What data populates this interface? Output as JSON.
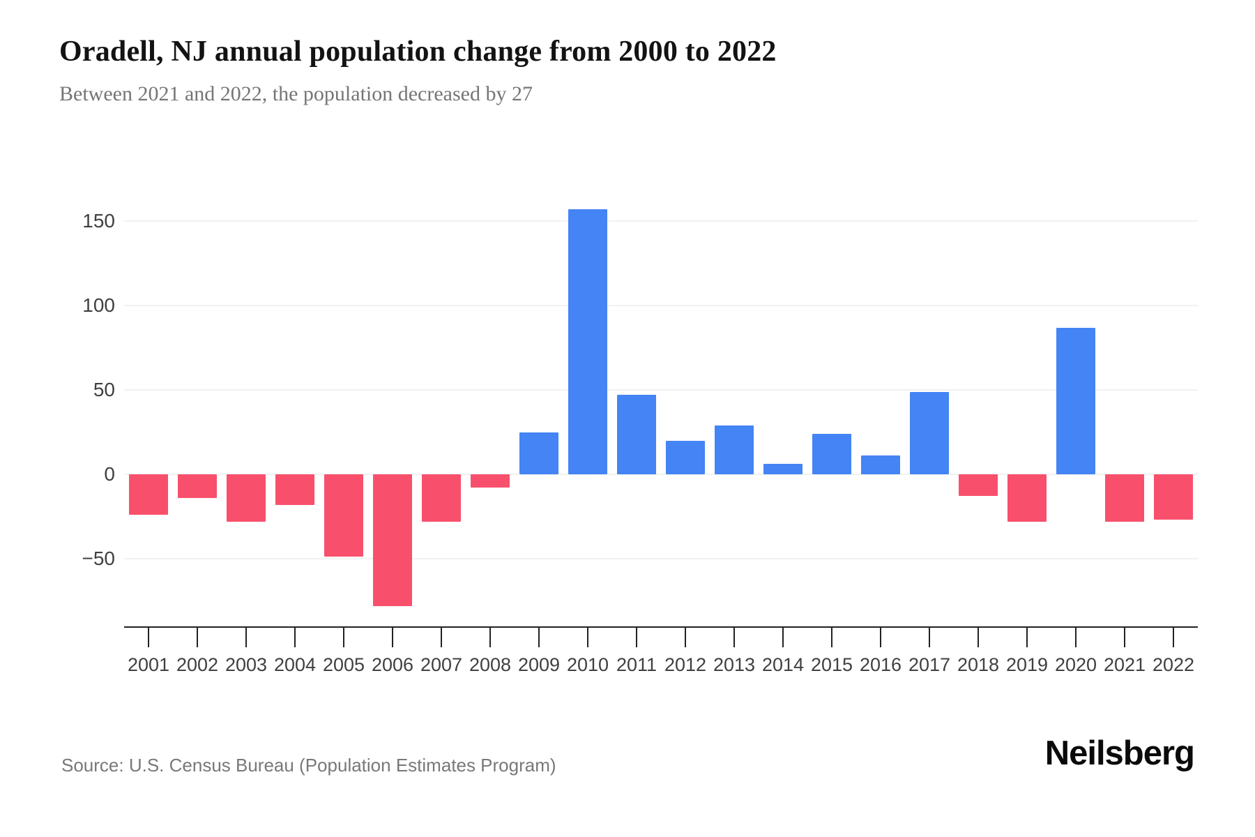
{
  "header": {
    "title": "Oradell, NJ annual population change from 2000 to 2022",
    "subtitle": "Between 2021 and 2022, the population decreased by 27"
  },
  "chart_data": {
    "type": "bar",
    "title": "Oradell, NJ annual population change from 2000 to 2022",
    "categories": [
      "2001",
      "2002",
      "2003",
      "2004",
      "2005",
      "2006",
      "2007",
      "2008",
      "2009",
      "2010",
      "2011",
      "2012",
      "2013",
      "2014",
      "2015",
      "2016",
      "2017",
      "2018",
      "2019",
      "2020",
      "2021",
      "2022"
    ],
    "values": [
      -24,
      -14,
      -28,
      -18,
      -49,
      -78,
      -28,
      -8,
      25,
      157,
      47,
      20,
      29,
      6,
      24,
      11,
      49,
      -13,
      -28,
      87,
      -28,
      -27
    ],
    "xlabel": "",
    "ylabel": "",
    "yticks": [
      150,
      100,
      50,
      0,
      -50
    ],
    "ylim": [
      -91,
      182
    ],
    "grid": true,
    "legend_position": "none",
    "positive_color": "#4484f4",
    "negative_color": "#f8506c",
    "gridline_color": "#f1f1f1",
    "axis_color": "#222222"
  },
  "footer": {
    "source": "Source: U.S. Census Bureau (Population Estimates Program)",
    "logo": "Neilsberg"
  }
}
